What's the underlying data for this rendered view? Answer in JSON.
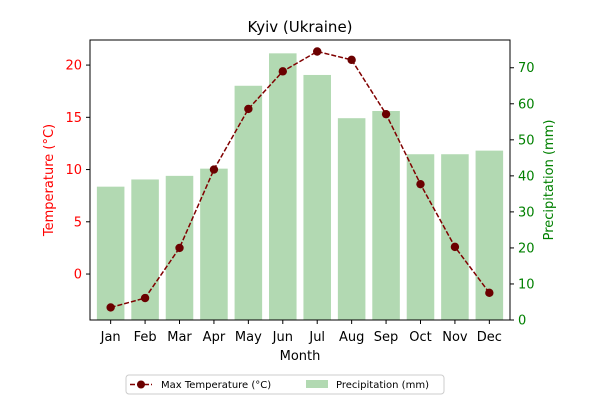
{
  "chart_data": {
    "type": "bar+line",
    "title": "Kyiv (Ukraine)",
    "xlabel": "Month",
    "categories": [
      "Jan",
      "Feb",
      "Mar",
      "Apr",
      "May",
      "Jun",
      "Jul",
      "Aug",
      "Sep",
      "Oct",
      "Nov",
      "Dec"
    ],
    "series": [
      {
        "name": "Max Temperature (°C)",
        "type": "line",
        "axis": "left",
        "values": [
          -3.2,
          -2.3,
          2.5,
          10.0,
          15.8,
          19.4,
          21.3,
          20.5,
          15.3,
          8.6,
          2.6,
          -1.8
        ]
      },
      {
        "name": "Precipitation (mm)",
        "type": "bar",
        "axis": "right",
        "values": [
          37,
          39,
          40,
          42,
          65,
          74,
          68,
          56,
          58,
          46,
          46,
          47
        ]
      }
    ],
    "left_axis": {
      "label": "Temperature (°C)",
      "ticks": [
        0,
        5,
        10,
        15,
        20
      ],
      "ylim": [
        -4.4,
        22.4
      ]
    },
    "right_axis": {
      "label": "Precipitation (mm)",
      "ticks": [
        0,
        10,
        20,
        30,
        40,
        50,
        60,
        70
      ],
      "ylim": [
        0,
        77.7
      ]
    },
    "legend_position": "bottom-center",
    "colors": {
      "line": "#800000",
      "line_marker": "#6b0000",
      "bar": "#b2d9b2",
      "left_axis": "#ff0000",
      "right_axis": "#008000"
    },
    "grid": false
  }
}
